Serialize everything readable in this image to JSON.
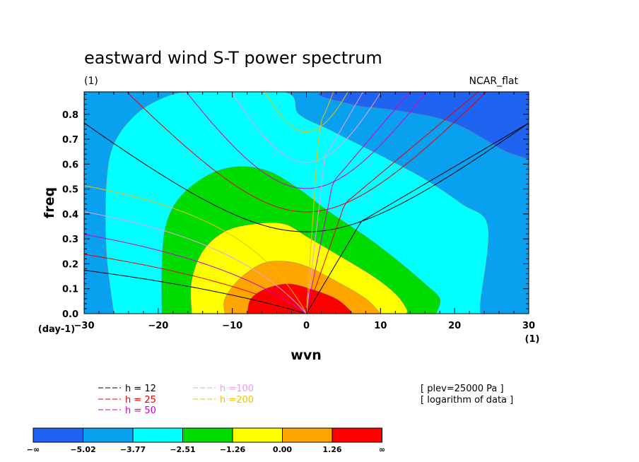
{
  "chart_data": {
    "type": "heatmap",
    "title": "eastward wind S-T power spectrum",
    "subtitle": "(1)",
    "colormap_name": "NCAR_flat",
    "xlabel": "wvn",
    "ylabel": "freq",
    "x_unit": "(1)",
    "y_unit": "(day-1)",
    "xlim": [
      -30,
      30
    ],
    "ylim": [
      0,
      0.89
    ],
    "x_ticks": [
      "−30",
      "−20",
      "−10",
      "0",
      "10",
      "20",
      "30"
    ],
    "x_tick_values": [
      -30,
      -20,
      -10,
      0,
      10,
      20,
      30
    ],
    "y_ticks": [
      "0.0",
      "0.1",
      "0.2",
      "0.3",
      "0.4",
      "0.5",
      "0.6",
      "0.7",
      "0.8"
    ],
    "y_tick_values": [
      0,
      0.1,
      0.2,
      0.3,
      0.4,
      0.5,
      0.6,
      0.7,
      0.8
    ],
    "contour_levels": [
      -5.02,
      -3.77,
      -2.51,
      -1.26,
      0.0,
      1.26
    ],
    "colorbar": {
      "labels": [
        "−∞",
        "−5.02",
        "−3.77",
        "−2.51",
        "−1.26",
        "0.00",
        "1.26",
        "∞"
      ],
      "colors": [
        "#1E64F0",
        "#0AA0F0",
        "#00FFFF",
        "#00DC00",
        "#FFFF00",
        "#FFA500",
        "#FF0000"
      ]
    },
    "regions": [
      {
        "level_index": 1,
        "polygon": [
          [
            -30,
            0
          ],
          [
            -30,
            0.89
          ],
          [
            30,
            0.89
          ],
          [
            30,
            0
          ]
        ]
      },
      {
        "level_index": 2,
        "polygon": [
          [
            -26,
            0
          ],
          [
            -27,
            0.25
          ],
          [
            -27,
            0.52
          ],
          [
            -26,
            0.68
          ],
          [
            -23,
            0.8
          ],
          [
            -19,
            0.87
          ],
          [
            -15,
            0.89
          ],
          [
            -3,
            0.89
          ],
          [
            -1,
            0.8
          ],
          [
            3,
            0.74
          ],
          [
            7,
            0.68
          ],
          [
            11,
            0.62
          ],
          [
            16,
            0.54
          ],
          [
            21,
            0.44
          ],
          [
            24.5,
            0.35
          ],
          [
            23.5,
            0.05
          ],
          [
            23.5,
            0
          ]
        ]
      },
      {
        "level_index": 0,
        "polygon": [
          [
            30,
            0.89
          ],
          [
            3,
            0.89
          ],
          [
            6,
            0.84
          ],
          [
            11,
            0.82
          ],
          [
            17,
            0.79
          ],
          [
            21,
            0.75
          ],
          [
            24,
            0.7
          ],
          [
            27,
            0.65
          ],
          [
            30,
            0.62
          ]
        ]
      },
      {
        "level_index": 3,
        "polygon": [
          [
            -19.5,
            0
          ],
          [
            -19.5,
            0.18
          ],
          [
            -19,
            0.35
          ],
          [
            -17,
            0.47
          ],
          [
            -13,
            0.56
          ],
          [
            -9,
            0.59
          ],
          [
            -5,
            0.57
          ],
          [
            -1,
            0.5
          ],
          [
            3,
            0.41
          ],
          [
            8,
            0.31
          ],
          [
            12,
            0.22
          ],
          [
            16,
            0.12
          ],
          [
            18,
            0.06
          ],
          [
            17.5,
            0
          ]
        ]
      },
      {
        "level_index": 4,
        "polygon": [
          [
            -15.5,
            0
          ],
          [
            -15.5,
            0.13
          ],
          [
            -14,
            0.25
          ],
          [
            -11,
            0.33
          ],
          [
            -7,
            0.36
          ],
          [
            -3,
            0.36
          ],
          [
            0,
            0.31
          ],
          [
            4,
            0.24
          ],
          [
            9,
            0.15
          ],
          [
            12,
            0.08
          ],
          [
            13.5,
            0.02
          ],
          [
            13.5,
            0
          ]
        ]
      },
      {
        "level_index": 5,
        "polygon": [
          [
            -11,
            0
          ],
          [
            -11,
            0.06
          ],
          [
            -9,
            0.14
          ],
          [
            -6,
            0.2
          ],
          [
            -3,
            0.21
          ],
          [
            0,
            0.19
          ],
          [
            4,
            0.13
          ],
          [
            8,
            0.06
          ],
          [
            10,
            0
          ]
        ]
      },
      {
        "level_index": 6,
        "polygon": [
          [
            -8,
            0
          ],
          [
            -7.5,
            0.06
          ],
          [
            -5.5,
            0.1
          ],
          [
            -2.5,
            0.12
          ],
          [
            0.5,
            0.1
          ],
          [
            4,
            0.06
          ],
          [
            6,
            0.01
          ],
          [
            6,
            0
          ]
        ]
      }
    ],
    "series": [
      {
        "name": "h = 12",
        "color": "#000000",
        "k0": 7.4,
        "w_min": 0.37,
        "w_edge": 0.765
      },
      {
        "name": "h = 25",
        "color": "#E60000",
        "k0": 5.2,
        "w_min": 0.442,
        "w_edge": 1.06
      },
      {
        "name": "h = 50",
        "color": "#CC00CC",
        "k0": 3.6,
        "w_min": 0.528,
        "w_edge": 1.45
      },
      {
        "name": "h =100",
        "color": "#E8A0E8",
        "k0": 2.5,
        "w_min": 0.628,
        "w_edge": 2.03
      },
      {
        "name": "h =200",
        "color": "#F0C000",
        "k0": 1.7,
        "w_min": 0.746,
        "w_edge": 2.83
      }
    ],
    "annotations": [
      "[ plev=25000 Pa ]",
      "[ logarithm of data ]"
    ]
  }
}
